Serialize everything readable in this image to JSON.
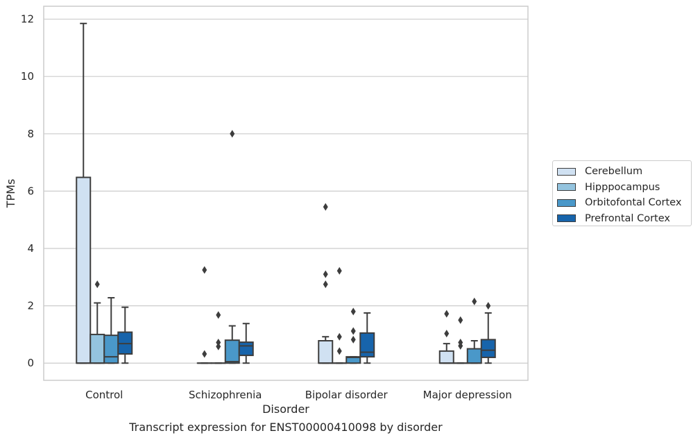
{
  "chart_data": {
    "type": "box",
    "xlabel": "Disorder",
    "ylabel": "TPMs",
    "caption": "Transcript expression for ENST00000410098 by disorder",
    "ylim": [
      -0.6,
      12.45
    ],
    "yticks": [
      "0",
      "2",
      "4",
      "6",
      "8",
      "10",
      "12"
    ],
    "grid": "horizontal",
    "legend_position": "right",
    "categories": [
      "Control",
      "Schizophrenia",
      "Bipolar disorder",
      "Major depression"
    ],
    "series": [
      {
        "name": "Cerebellum",
        "color": "#d0e1f2",
        "boxes": [
          {
            "low": 0,
            "q1": 0,
            "median": 0,
            "q3": 6.48,
            "high": 11.85,
            "outliers": []
          },
          {
            "low": 0,
            "q1": 0,
            "median": 0,
            "q3": 0,
            "high": 0,
            "outliers": [
              0.32,
              3.25
            ]
          },
          {
            "low": 0,
            "q1": 0,
            "median": 0,
            "q3": 0.78,
            "high": 0.92,
            "outliers": [
              2.75,
              3.1,
              5.45
            ]
          },
          {
            "low": 0,
            "q1": 0,
            "median": 0,
            "q3": 0.42,
            "high": 0.68,
            "outliers": [
              1.03,
              1.72
            ]
          }
        ]
      },
      {
        "name": "Hipppocampus",
        "color": "#94c4df",
        "boxes": [
          {
            "low": 0,
            "q1": 0,
            "median": 0,
            "q3": 1.0,
            "high": 2.1,
            "outliers": [
              2.75
            ]
          },
          {
            "low": 0,
            "q1": 0,
            "median": 0,
            "q3": 0,
            "high": 0,
            "outliers": [
              0.58,
              0.72,
              1.68
            ]
          },
          {
            "low": 0,
            "q1": 0,
            "median": 0,
            "q3": 0,
            "high": 0,
            "outliers": [
              0.42,
              0.92,
              3.22
            ]
          },
          {
            "low": 0,
            "q1": 0,
            "median": 0,
            "q3": 0,
            "high": 0,
            "outliers": [
              0.6,
              0.72,
              1.5
            ]
          }
        ]
      },
      {
        "name": "Orbitofontal Cortex",
        "color": "#4a98c9",
        "boxes": [
          {
            "low": 0,
            "q1": 0,
            "median": 0.22,
            "q3": 0.97,
            "high": 2.28,
            "outliers": []
          },
          {
            "low": 0,
            "q1": 0,
            "median": 0.05,
            "q3": 0.8,
            "high": 1.3,
            "outliers": [
              8.0
            ]
          },
          {
            "low": 0,
            "q1": 0,
            "median": 0.2,
            "q3": 0.22,
            "high": 0.22,
            "outliers": [
              0.82,
              1.12,
              1.8
            ]
          },
          {
            "low": 0,
            "q1": 0,
            "median": 0,
            "q3": 0.5,
            "high": 0.78,
            "outliers": [
              2.15
            ]
          }
        ]
      },
      {
        "name": "Prefrontal Cortex",
        "color": "#1764ab",
        "boxes": [
          {
            "low": 0,
            "q1": 0.32,
            "median": 0.68,
            "q3": 1.08,
            "high": 1.95,
            "outliers": []
          },
          {
            "low": 0,
            "q1": 0.27,
            "median": 0.6,
            "q3": 0.73,
            "high": 1.38,
            "outliers": []
          },
          {
            "low": 0,
            "q1": 0.22,
            "median": 0.38,
            "q3": 1.05,
            "high": 1.75,
            "outliers": []
          },
          {
            "low": 0,
            "q1": 0.2,
            "median": 0.45,
            "q3": 0.82,
            "high": 1.75,
            "outliers": [
              2.0
            ]
          }
        ]
      }
    ]
  }
}
